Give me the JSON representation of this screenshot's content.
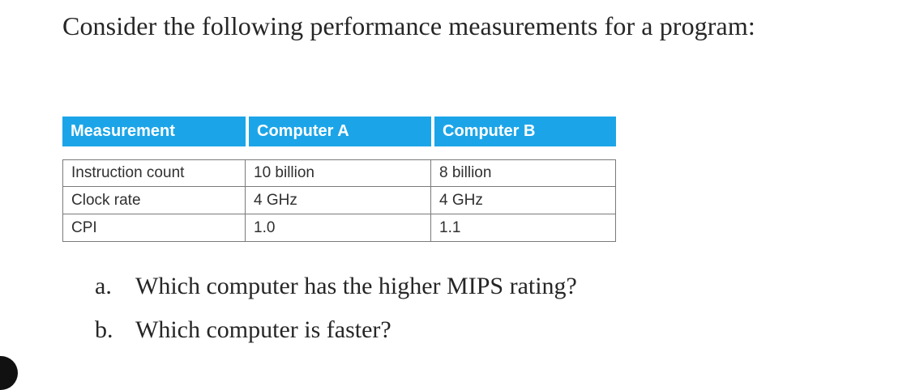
{
  "intro": "Consider the following performance measurements for a program:",
  "table": {
    "headers": [
      "Measurement",
      "Computer A",
      "Computer B"
    ],
    "rows": [
      [
        "Instruction count",
        "10 billion",
        "8 billion"
      ],
      [
        "Clock rate",
        "4 GHz",
        "4 GHz"
      ],
      [
        "CPI",
        "1.0",
        "1.1"
      ]
    ]
  },
  "questions": [
    {
      "letter": "a.",
      "text": "Which computer has the higher MIPS rating?"
    },
    {
      "letter": "b.",
      "text": "Which computer is faster?"
    }
  ],
  "colors": {
    "header_bg": "#1ba5e8",
    "header_text": "#ffffff",
    "border": "#7a7a7a",
    "body_text": "#262626"
  }
}
